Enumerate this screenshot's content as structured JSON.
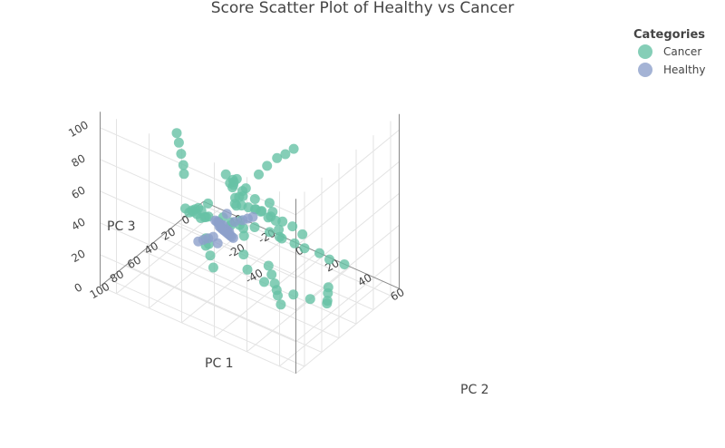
{
  "chart_data": {
    "type": "scatter",
    "title": "Score Scatter Plot of Healthy vs Cancer",
    "legend": {
      "title": "Categories",
      "placement": "top-right"
    },
    "axes": {
      "x": {
        "label": "PC 1",
        "ticks": [
          0,
          20,
          40,
          60,
          80,
          100
        ],
        "range": [
          -10,
          110
        ]
      },
      "y": {
        "label": "PC 2",
        "ticks": [
          -40,
          -20,
          0,
          20,
          40,
          60
        ],
        "range": [
          -50,
          70
        ]
      },
      "z": {
        "label": "PC 3",
        "ticks": [
          0,
          20,
          40,
          60,
          80,
          100
        ],
        "range": [
          0,
          110
        ]
      }
    },
    "xaxis_extra_ticks": [
      -20,
      -40
    ],
    "grid": true,
    "series": [
      {
        "name": "Cancer",
        "color": "#66c2a5",
        "points": [
          [
            50,
            0,
            60
          ],
          [
            60,
            5,
            70
          ],
          [
            65,
            10,
            75
          ],
          [
            55,
            -2,
            68
          ],
          [
            40,
            -5,
            55
          ],
          [
            45,
            5,
            58
          ],
          [
            35,
            -10,
            50
          ],
          [
            30,
            -5,
            45
          ],
          [
            25,
            0,
            40
          ],
          [
            20,
            -10,
            35
          ],
          [
            15,
            -15,
            30
          ],
          [
            10,
            -20,
            25
          ],
          [
            5,
            -10,
            20
          ],
          [
            0,
            -5,
            15
          ],
          [
            70,
            10,
            72
          ],
          [
            75,
            15,
            65
          ],
          [
            80,
            20,
            60
          ],
          [
            85,
            25,
            55
          ],
          [
            60,
            -10,
            40
          ],
          [
            55,
            -15,
            35
          ],
          [
            50,
            -20,
            30
          ],
          [
            45,
            -25,
            28
          ],
          [
            40,
            -30,
            25
          ],
          [
            35,
            -35,
            20
          ],
          [
            30,
            -40,
            18
          ],
          [
            25,
            -30,
            15
          ],
          [
            20,
            -25,
            12
          ],
          [
            15,
            -20,
            10
          ],
          [
            10,
            -15,
            8
          ],
          [
            5,
            -25,
            5
          ],
          [
            95,
            30,
            50
          ],
          [
            100,
            35,
            45
          ],
          [
            90,
            40,
            35
          ],
          [
            85,
            45,
            30
          ],
          [
            75,
            50,
            25
          ],
          [
            65,
            55,
            20
          ],
          [
            55,
            60,
            15
          ],
          [
            45,
            55,
            10
          ],
          [
            35,
            50,
            8
          ],
          [
            25,
            45,
            5
          ],
          [
            62,
            0,
            45
          ],
          [
            58,
            8,
            42
          ],
          [
            48,
            12,
            38
          ],
          [
            42,
            18,
            35
          ],
          [
            38,
            22,
            32
          ],
          [
            32,
            28,
            28
          ],
          [
            28,
            32,
            25
          ],
          [
            22,
            38,
            22
          ],
          [
            18,
            42,
            18
          ],
          [
            12,
            48,
            15
          ],
          [
            70,
            -5,
            55
          ],
          [
            72,
            -8,
            50
          ],
          [
            68,
            -12,
            48
          ],
          [
            66,
            -15,
            45
          ],
          [
            64,
            -18,
            42
          ],
          [
            52,
            2,
            50
          ],
          [
            48,
            4,
            48
          ],
          [
            44,
            6,
            46
          ],
          [
            40,
            8,
            44
          ],
          [
            36,
            10,
            42
          ],
          [
            88,
            5,
            42
          ],
          [
            92,
            8,
            38
          ],
          [
            96,
            12,
            34
          ],
          [
            78,
            -2,
            38
          ],
          [
            82,
            0,
            36
          ],
          [
            30,
            5,
            60
          ],
          [
            26,
            8,
            65
          ],
          [
            22,
            12,
            70
          ],
          [
            18,
            15,
            72
          ],
          [
            14,
            18,
            75
          ],
          [
            56,
            20,
            55
          ],
          [
            52,
            24,
            52
          ],
          [
            46,
            28,
            48
          ],
          [
            42,
            32,
            45
          ],
          [
            38,
            36,
            40
          ],
          [
            60,
            -25,
            60
          ],
          [
            55,
            -28,
            62
          ],
          [
            50,
            -32,
            65
          ],
          [
            45,
            -36,
            68
          ],
          [
            40,
            -40,
            70
          ],
          [
            8,
            0,
            30
          ],
          [
            12,
            4,
            28
          ],
          [
            16,
            8,
            26
          ],
          [
            20,
            12,
            24
          ],
          [
            24,
            16,
            22
          ],
          [
            66,
            30,
            30
          ],
          [
            70,
            34,
            28
          ],
          [
            74,
            38,
            26
          ],
          [
            78,
            42,
            22
          ],
          [
            82,
            46,
            20
          ]
        ]
      },
      {
        "name": "Healthy",
        "color": "#8da0cb",
        "points": [
          [
            60,
            -2,
            38
          ],
          [
            62,
            0,
            40
          ],
          [
            64,
            2,
            39
          ],
          [
            58,
            -4,
            37
          ],
          [
            56,
            -6,
            36
          ],
          [
            66,
            4,
            41
          ],
          [
            68,
            6,
            42
          ],
          [
            54,
            -8,
            35
          ],
          [
            52,
            -10,
            34
          ],
          [
            70,
            8,
            43
          ],
          [
            61,
            1,
            36
          ],
          [
            63,
            3,
            37
          ],
          [
            59,
            -1,
            35
          ],
          [
            57,
            -3,
            34
          ],
          [
            65,
            5,
            38
          ],
          [
            67,
            7,
            39
          ],
          [
            55,
            -5,
            33
          ],
          [
            53,
            -7,
            32
          ],
          [
            69,
            9,
            40
          ],
          [
            71,
            11,
            41
          ],
          [
            60,
            6,
            44
          ],
          [
            58,
            10,
            46
          ],
          [
            62,
            -6,
            30
          ],
          [
            64,
            -8,
            29
          ],
          [
            56,
            12,
            47
          ],
          [
            66,
            -10,
            28
          ],
          [
            54,
            14,
            48
          ],
          [
            68,
            -12,
            27
          ],
          [
            50,
            -4,
            40
          ],
          [
            72,
            2,
            34
          ]
        ]
      }
    ]
  }
}
